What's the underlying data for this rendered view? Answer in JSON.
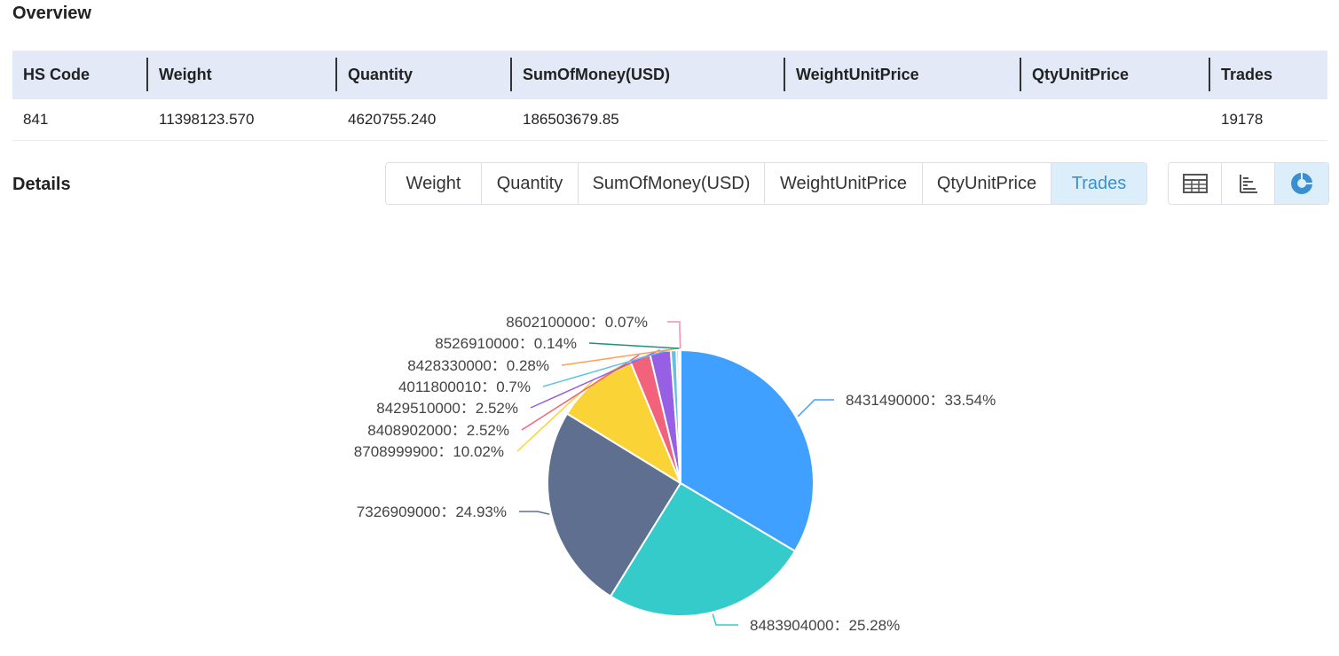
{
  "overview": {
    "title": "Overview",
    "headers": [
      "HS Code",
      "Weight",
      "Quantity",
      "SumOfMoney(USD)",
      "WeightUnitPrice",
      "QtyUnitPrice",
      "Trades"
    ],
    "row": [
      "841",
      "11398123.570",
      "4620755.240",
      "186503679.85",
      "",
      "",
      "19178"
    ]
  },
  "details": {
    "title": "Details",
    "tabs": [
      "Weight",
      "Quantity",
      "SumOfMoney(USD)",
      "WeightUnitPrice",
      "QtyUnitPrice",
      "Trades"
    ],
    "active_tab": "Trades",
    "view_icons": [
      "table-icon",
      "bar-chart-icon",
      "pie-chart-icon"
    ],
    "active_view": "pie-chart-icon"
  },
  "colors": {
    "accent": "#3a8fd0",
    "header_bg": "#e3e9f7"
  },
  "chart_data": {
    "type": "pie",
    "slices": [
      {
        "name": "8431490000",
        "value": 33.54,
        "label": "8431490000：33.54%",
        "color": "#3fa0ff"
      },
      {
        "name": "8483904000",
        "value": 25.28,
        "label": "8483904000：25.28%",
        "color": "#36cbcb"
      },
      {
        "name": "7326909000",
        "value": 24.93,
        "label": "7326909000：24.93%",
        "color": "#5e6f8f"
      },
      {
        "name": "8708999900",
        "value": 10.02,
        "label": "8708999900：10.02%",
        "color": "#fad337"
      },
      {
        "name": "8408902000",
        "value": 2.52,
        "label": "8408902000：2.52%",
        "color": "#f2637b"
      },
      {
        "name": "8429510000",
        "value": 2.52,
        "label": "8429510000：2.52%",
        "color": "#975fe4"
      },
      {
        "name": "4011800010",
        "value": 0.7,
        "label": "4011800010：0.7%",
        "color": "#62c1e6"
      },
      {
        "name": "8428330000",
        "value": 0.28,
        "label": "8428330000：0.28%",
        "color": "#ff9f4f"
      },
      {
        "name": "8526910000",
        "value": 0.14,
        "label": "8526910000：0.14%",
        "color": "#1f8f7e"
      },
      {
        "name": "8602100000",
        "value": 0.07,
        "label": "8602100000：0.07%",
        "color": "#f48fb1"
      }
    ]
  }
}
